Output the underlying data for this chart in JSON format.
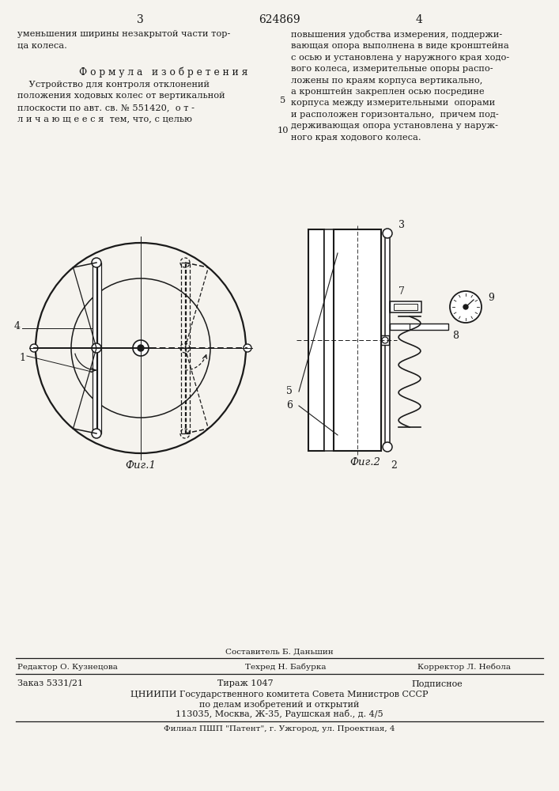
{
  "bg_color": "#f5f3ee",
  "text_color": "#1a1a1a",
  "page_number_left": "3",
  "patent_number": "624869",
  "page_number_right": "4",
  "top_text_left": "уменьшения ширины незакрытой части тор-\nца колеса.",
  "formula_header": "Ф о р м у л а   и з о б р е т е н и я",
  "formula_text": "    Устройство для контроля отклонений\nположения ходовых колес от вертикальной\nплоскости по авт. св. № 551420,  о т -\nл и ч а ю щ е е с я  тем, что, с целью",
  "line_number_5": "5",
  "line_number_10": "10",
  "top_text_right": "повышения удобства измерения, поддержи-\nвающая опора выполнена в виде кронштейна\nс осью и установлена у наружного края ходо-\nвого колеса, измерительные опоры распо-\nложены по краям корпуса вертикально,\nа кронштейн закреплен осью посредине\nкорпуса между измерительными  опорами\nи расположен горизонтально,  причем под-\nдерживающая опора установлена у наруж-\nного края ходового колеса.",
  "fig1_caption": "Фиг.1",
  "fig2_caption": "Фиг.2",
  "footer_composer": "Составитель Б. Даньшин",
  "footer_editor": "Редактор О. Кузнецова",
  "footer_tech": "Техред Н. Бабурка",
  "footer_corrector": "Корректор Л. Небола",
  "footer_order": "Заказ 5331/21",
  "footer_print": "Тираж 1047",
  "footer_sub": "Подписное",
  "footer_org": "ЦНИИПИ Государственного комитета Совета Министров СССР",
  "footer_affairs": "по делам изобретений и открытий",
  "footer_addr": "113035, Москва, Ж-35, Раушская наб., д. 4/5",
  "footer_branch": "Филиал ПШП \"Патент\", г. Ужгород, ул. Проектная, 4"
}
